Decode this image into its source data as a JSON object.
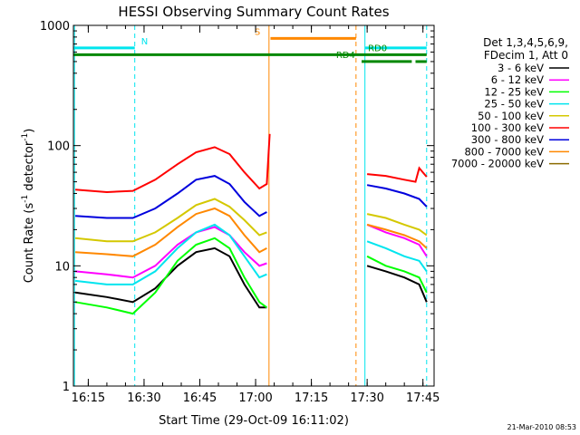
{
  "chart_data": {
    "type": "line",
    "title": "HESSI Observing Summary Count Rates",
    "xlabel": "Start Time (29-Oct-09 16:11:02)",
    "ylabel_main": "Count Rate (s",
    "ylabel_sup1": "-1",
    "ylabel_mid": " detector",
    "ylabel_sup2": "-1",
    "ylabel_end": ")",
    "ylog": true,
    "ylim": [
      1,
      1000
    ],
    "xlim_min": [
      971,
      1068
    ],
    "x_ticks": [
      {
        "min": 975,
        "label": "16:15"
      },
      {
        "min": 990,
        "label": "16:30"
      },
      {
        "min": 1005,
        "label": "16:45"
      },
      {
        "min": 1020,
        "label": "17:00"
      },
      {
        "min": 1035,
        "label": "17:15"
      },
      {
        "min": 1050,
        "label": "17:30"
      },
      {
        "min": 1065,
        "label": "17:45"
      }
    ],
    "y_ticks": [
      {
        "v": 1,
        "label": "1"
      },
      {
        "v": 10,
        "label": "10"
      },
      {
        "v": 100,
        "label": "100"
      },
      {
        "v": 1000,
        "label": "1000"
      }
    ],
    "legend_header": [
      "Det 1,3,4,5,6,9,",
      "FDecim 1, Att 0"
    ],
    "footer_date": "21-Mar-2010 08:53",
    "flags": [
      {
        "label": "N",
        "color": "#00e5ee",
        "y": 650,
        "segments": [
          [
            971,
            987.5
          ],
          [
            1049.5,
            1066
          ]
        ],
        "label_at": 988.5,
        "label_side": "right"
      },
      {
        "label": "S",
        "color": "#ff8800",
        "y": 780,
        "segments": [
          [
            1024,
            1047
          ]
        ],
        "label_at": 1022,
        "label_side": "left"
      },
      {
        "label": "RD0",
        "color": "#008800",
        "y": 570,
        "segments": [
          [
            971,
            1066
          ]
        ],
        "label_at": 1049.5,
        "label_side": "right"
      },
      {
        "label": "RD4",
        "color": "#008800",
        "y": 500,
        "segments": [
          [
            1048.5,
            1062
          ],
          [
            1063,
            1066
          ]
        ],
        "label_at": 1047.5,
        "label_side": "left"
      }
    ],
    "vlines": [
      {
        "min": 971.3,
        "color": "#00e5ee",
        "style": "solid"
      },
      {
        "min": 987.5,
        "color": "#00e5ee",
        "style": "dashed"
      },
      {
        "min": 1023.6,
        "color": "#ff8800",
        "style": "solid"
      },
      {
        "min": 1047,
        "color": "#ff8800",
        "style": "dashed"
      },
      {
        "min": 1049.4,
        "color": "#00e5ee",
        "style": "solid"
      },
      {
        "min": 1066,
        "color": "#00e5ee",
        "style": "dashed"
      }
    ],
    "series": [
      {
        "name": "3 - 6 keV",
        "color": "#000000",
        "x": [
          971.5,
          980,
          987,
          993,
          999,
          1004,
          1009,
          1013,
          1017,
          1021,
          1023,
          1050,
          1055,
          1060,
          1064,
          1066
        ],
        "y": [
          6,
          5.5,
          5,
          6.5,
          10,
          13,
          14,
          12,
          7,
          4.5,
          4.5,
          10,
          9,
          8,
          7,
          5
        ]
      },
      {
        "name": "6 - 12 keV",
        "color": "#ff00ff",
        "x": [
          971.5,
          980,
          987,
          993,
          999,
          1004,
          1009,
          1013,
          1017,
          1021,
          1023,
          1050,
          1055,
          1060,
          1064,
          1066
        ],
        "y": [
          9,
          8.5,
          8,
          10,
          15,
          19,
          21,
          18,
          13,
          10,
          10.5,
          22,
          19,
          17,
          15,
          12
        ]
      },
      {
        "name": "12 - 25 keV",
        "color": "#00ff00",
        "x": [
          971.5,
          980,
          987,
          993,
          999,
          1004,
          1009,
          1013,
          1017,
          1021,
          1023,
          1050,
          1055,
          1060,
          1064,
          1066
        ],
        "y": [
          5,
          4.5,
          4,
          6,
          11,
          15,
          17,
          14,
          8,
          5,
          4.5,
          12,
          10,
          9,
          8,
          6
        ]
      },
      {
        "name": "25 - 50 keV",
        "color": "#00e5ee",
        "x": [
          971.5,
          980,
          987,
          993,
          999,
          1004,
          1009,
          1013,
          1017,
          1021,
          1023,
          1050,
          1055,
          1060,
          1064,
          1066
        ],
        "y": [
          7.5,
          7,
          7,
          9,
          14,
          19,
          22,
          18,
          12,
          8,
          8.5,
          16,
          14,
          12,
          11,
          9
        ]
      },
      {
        "name": "50 - 100 keV",
        "color": "#d4c800",
        "x": [
          971.5,
          980,
          987,
          993,
          999,
          1004,
          1009,
          1013,
          1017,
          1021,
          1023,
          1050,
          1055,
          1060,
          1064,
          1066
        ],
        "y": [
          17,
          16,
          16,
          19,
          25,
          32,
          36,
          31,
          24,
          18,
          19,
          27,
          25,
          22,
          20,
          18
        ]
      },
      {
        "name": "100 - 300 keV",
        "color": "#ff0000",
        "x": [
          971.5,
          980,
          987,
          993,
          999,
          1004,
          1009,
          1013,
          1017,
          1021,
          1023,
          1023.8,
          1050,
          1055,
          1060,
          1063,
          1064,
          1066
        ],
        "y": [
          43,
          41,
          42,
          52,
          70,
          88,
          97,
          85,
          60,
          44,
          48,
          125,
          58,
          56,
          52,
          50,
          65,
          55
        ]
      },
      {
        "name": "300 - 800 keV",
        "color": "#0000dd",
        "x": [
          971.5,
          980,
          987,
          993,
          999,
          1004,
          1009,
          1013,
          1017,
          1021,
          1023,
          1050,
          1055,
          1060,
          1064,
          1066
        ],
        "y": [
          26,
          25,
          25,
          30,
          40,
          52,
          56,
          48,
          34,
          26,
          28,
          47,
          44,
          40,
          36,
          31
        ]
      },
      {
        "name": "800 - 7000 keV",
        "color": "#ff8800",
        "x": [
          971.5,
          980,
          987,
          993,
          999,
          1004,
          1009,
          1013,
          1017,
          1021,
          1023,
          1050,
          1055,
          1060,
          1064,
          1066
        ],
        "y": [
          13,
          12.5,
          12,
          15,
          21,
          27,
          30,
          26,
          18,
          13,
          14,
          22,
          20,
          18,
          16,
          14
        ]
      },
      {
        "name": "7000 - 20000 keV",
        "color": "#8b6b00",
        "x": [
          971.5,
          1066
        ],
        "y": [
          1,
          1
        ]
      }
    ]
  }
}
